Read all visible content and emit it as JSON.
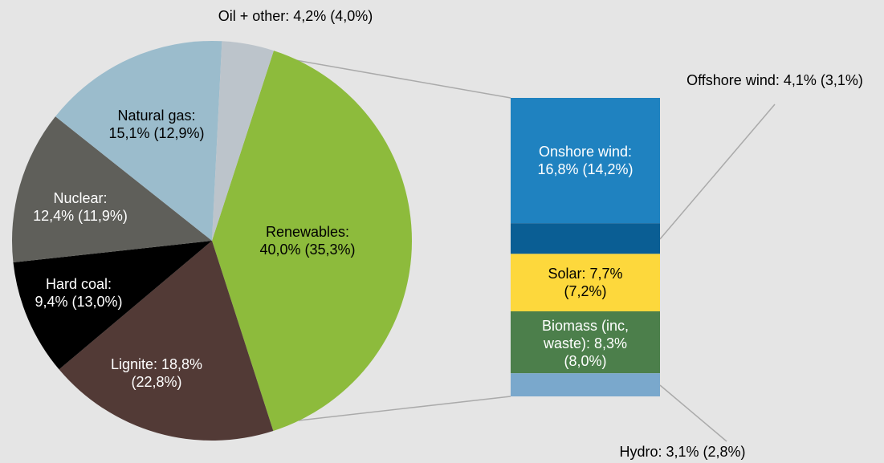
{
  "chart_data": {
    "type": "pie",
    "values": [
      40.0,
      18.8,
      9.4,
      12.4,
      15.1,
      4.2
    ],
    "value_labels": [
      "Renewables:\n40,0% (35,3%)",
      "Lignite: 18,8%\n(22,8%)",
      "Hard coal:\n9,4% (13,0%)",
      "Nuclear:\n12,4% (11,9%)",
      "Natural gas:\n15,1% (12,9%)",
      "Oil + other: 4,2% (4,0%)"
    ],
    "colors": [
      "#8dbb3c",
      "#523a36",
      "#000000",
      "#5f5f5a",
      "#9bbccc",
      "#bcc4cb"
    ],
    "breakdown": {
      "type": "bar",
      "values": [
        16.8,
        4.1,
        7.7,
        8.3,
        3.1
      ],
      "value_labels": [
        "Onshore wind:\n16,8% (14,2%)",
        "Offshore wind: 4,1% (3,1%)",
        "Solar: 7,7%\n(7,2%)",
        "Biomass (inc,\nwaste): 8,3%\n(8,0%)",
        "Hydro: 3,1% (2,8%)"
      ],
      "colors": [
        "#1f82c0",
        "#0a5e94",
        "#fdd83c",
        "#4c7f4b",
        "#7aa8cc"
      ]
    }
  }
}
